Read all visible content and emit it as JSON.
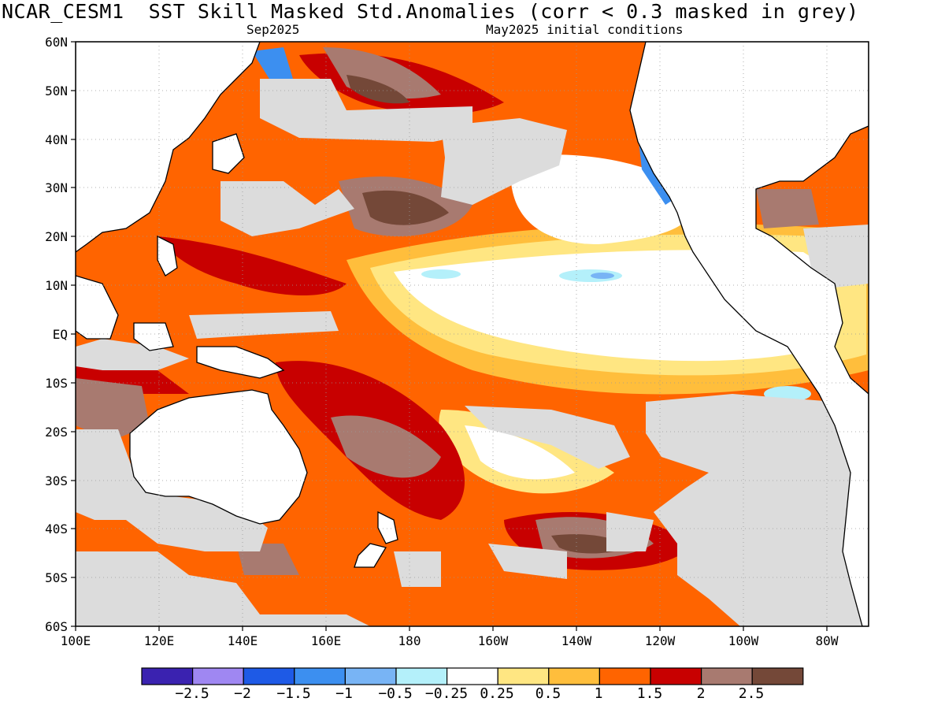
{
  "header": {
    "title": "NCAR_CESM1  SST Skill Masked Std.Anomalies (corr < 0.3 masked in grey)",
    "valid": "Sep2025",
    "init": "May2025 initial conditions"
  },
  "map": {
    "lat_labels": [
      "60N",
      "50N",
      "40N",
      "30N",
      "20N",
      "10N",
      "EQ",
      "10S",
      "20S",
      "30S",
      "40S",
      "50S",
      "60S"
    ],
    "lon_labels": [
      "100E",
      "120E",
      "140E",
      "160E",
      "180",
      "160W",
      "140W",
      "120W",
      "100W",
      "80W"
    ],
    "extent": {
      "lon_min": 100,
      "lon_max": 290,
      "lat_min": -60,
      "lat_max": 60
    },
    "mask_color": "#dcdcdc",
    "land_color": "#ffffff"
  },
  "colorbar": {
    "colors": [
      "#3a22b0",
      "#9f87f2",
      "#1e5ae6",
      "#3c8ff0",
      "#78b4f5",
      "#b4f0fa",
      "#ffffff",
      "#ffe682",
      "#ffbe3c",
      "#ff6400",
      "#c80000",
      "#a87a70",
      "#744838"
    ],
    "labels": [
      "−2.5",
      "−2",
      "−1.5",
      "−1",
      "−0.5",
      "−0.25",
      "0.25",
      "0.5",
      "1",
      "1.5",
      "2",
      "2.5"
    ]
  }
}
